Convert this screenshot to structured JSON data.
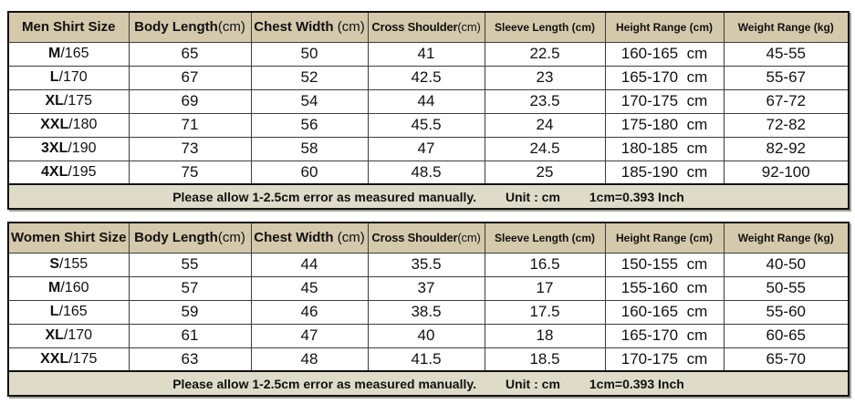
{
  "colors": {
    "header_bg": "#d5c9ac",
    "footer_bg": "#dedcc8",
    "row_bg": "#ffffff",
    "border": "#111111",
    "text": "#111111"
  },
  "chart_data": [
    {
      "type": "table",
      "title": "Men Shirt Size",
      "columns": [
        {
          "text": "Men Shirt Size",
          "unit": "",
          "cls": "h-lg"
        },
        {
          "text": "Body Length",
          "unit": "(cm)",
          "cls": "h-lg"
        },
        {
          "text": "Chest Width",
          "unit": " (cm)",
          "cls": "h-lg"
        },
        {
          "text": "Cross Shoulder",
          "unit": "(cm)",
          "cls": "h-md"
        },
        {
          "text": "Sleeve Length (cm)",
          "unit": "",
          "cls": "h-sm"
        },
        {
          "text": "Height Range (cm)",
          "unit": "",
          "cls": "h-sm"
        },
        {
          "text": "Weight Range (kg)",
          "unit": "",
          "cls": "h-sm"
        }
      ],
      "rows": [
        {
          "size_code": "M",
          "size_suffix": "/165",
          "body_length": "65",
          "chest_width": "50",
          "cross_shoulder": "41",
          "sleeve_length": "22.5",
          "height_range": "160-165  cm",
          "weight_range": "45-55"
        },
        {
          "size_code": "L",
          "size_suffix": "/170",
          "body_length": "67",
          "chest_width": "52",
          "cross_shoulder": "42.5",
          "sleeve_length": "23",
          "height_range": "165-170  cm",
          "weight_range": "55-67"
        },
        {
          "size_code": "XL",
          "size_suffix": "/175",
          "body_length": "69",
          "chest_width": "54",
          "cross_shoulder": "44",
          "sleeve_length": "23.5",
          "height_range": "170-175  cm",
          "weight_range": "67-72"
        },
        {
          "size_code": "XXL",
          "size_suffix": "/180",
          "body_length": "71",
          "chest_width": "56",
          "cross_shoulder": "45.5",
          "sleeve_length": "24",
          "height_range": "175-180  cm",
          "weight_range": "72-82"
        },
        {
          "size_code": "3XL",
          "size_suffix": "/190",
          "body_length": "73",
          "chest_width": "58",
          "cross_shoulder": "47",
          "sleeve_length": "24.5",
          "height_range": "180-185  cm",
          "weight_range": "82-92"
        },
        {
          "size_code": "4XL",
          "size_suffix": "/195",
          "body_length": "75",
          "chest_width": "60",
          "cross_shoulder": "48.5",
          "sleeve_length": "25",
          "height_range": "185-190  cm",
          "weight_range": "92-100"
        }
      ],
      "footer": {
        "note": "Please allow 1-2.5cm error as measured manually.",
        "unit": "Unit : cm",
        "conversion": "1cm=0.393 Inch"
      }
    },
    {
      "type": "table",
      "title": "Women Shirt Size",
      "columns": [
        {
          "text": "Women Shirt Size",
          "unit": "",
          "cls": "h-lg"
        },
        {
          "text": "Body Length",
          "unit": "(cm)",
          "cls": "h-lg"
        },
        {
          "text": "Chest Width",
          "unit": " (cm)",
          "cls": "h-lg"
        },
        {
          "text": "Cross Shoulder",
          "unit": "(cm)",
          "cls": "h-md"
        },
        {
          "text": "Sleeve Length (cm)",
          "unit": "",
          "cls": "h-sm"
        },
        {
          "text": "Height Range (cm)",
          "unit": "",
          "cls": "h-sm"
        },
        {
          "text": "Weight Range (kg)",
          "unit": "",
          "cls": "h-sm"
        }
      ],
      "rows": [
        {
          "size_code": "S",
          "size_suffix": "/155",
          "body_length": "55",
          "chest_width": "44",
          "cross_shoulder": "35.5",
          "sleeve_length": "16.5",
          "height_range": "150-155  cm",
          "weight_range": "40-50"
        },
        {
          "size_code": "M",
          "size_suffix": "/160",
          "body_length": "57",
          "chest_width": "45",
          "cross_shoulder": "37",
          "sleeve_length": "17",
          "height_range": "155-160  cm",
          "weight_range": "50-55"
        },
        {
          "size_code": "L",
          "size_suffix": "/165",
          "body_length": "59",
          "chest_width": "46",
          "cross_shoulder": "38.5",
          "sleeve_length": "17.5",
          "height_range": "160-165  cm",
          "weight_range": "55-60"
        },
        {
          "size_code": "XL",
          "size_suffix": "/170",
          "body_length": "61",
          "chest_width": "47",
          "cross_shoulder": "40",
          "sleeve_length": "18",
          "height_range": "165-170  cm",
          "weight_range": "60-65"
        },
        {
          "size_code": "XXL",
          "size_suffix": "/175",
          "body_length": "63",
          "chest_width": "48",
          "cross_shoulder": "41.5",
          "sleeve_length": "18.5",
          "height_range": "170-175  cm",
          "weight_range": "65-70"
        }
      ],
      "footer": {
        "note": "Please allow 1-2.5cm error as measured manually.",
        "unit": "Unit : cm",
        "conversion": "1cm=0.393 Inch"
      }
    }
  ]
}
